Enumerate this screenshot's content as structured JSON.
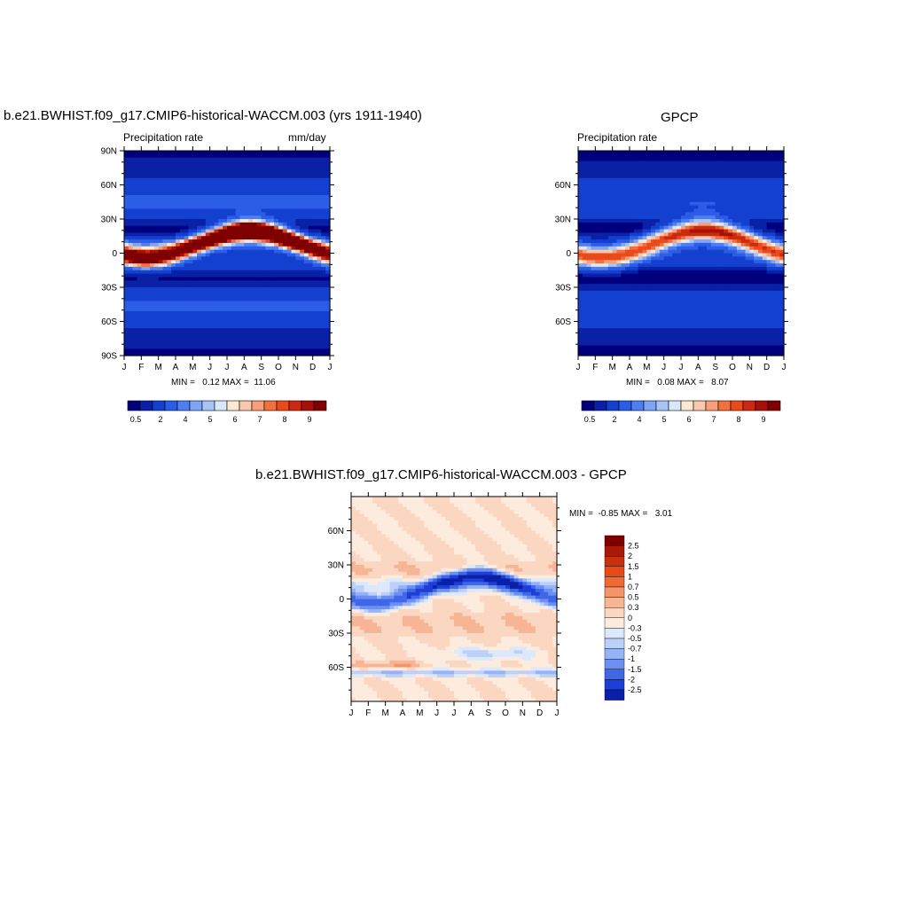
{
  "panels": [
    {
      "title": "b.e21.BWHIST.f09_g17.CMIP6-historical-WACCM.003 (yrs 1911-1940)",
      "left_label": "Precipitation rate",
      "right_label": "mm/day",
      "stats_text": "MIN =   0.12 MAX =  11.06"
    },
    {
      "title": "GPCP",
      "left_label": "Precipitation rate",
      "right_label": "",
      "stats_text": "MIN =   0.08 MAX =   8.07"
    },
    {
      "title": "b.e21.BWHIST.f09_g17.CMIP6-historical-WACCM.003 - GPCP",
      "left_label": "",
      "right_label": "",
      "stats_text": "MIN =  -0.85 MAX =   3.01"
    }
  ],
  "chart_data": [
    {
      "type": "heatmap",
      "title": "b.e21.BWHIST.f09_g17.CMIP6-historical-WACCM.003 (yrs 1911-1940)",
      "variable": "Precipitation rate",
      "units": "mm/day",
      "x_ticks": [
        "J",
        "F",
        "M",
        "A",
        "M",
        "J",
        "J",
        "A",
        "S",
        "O",
        "N",
        "D",
        "J"
      ],
      "y_ticks": [
        "90N",
        "60N",
        "30N",
        "0",
        "30S",
        "60S",
        "90S"
      ],
      "xlim_months": [
        0,
        12
      ],
      "ylim_lat": [
        -90,
        90
      ],
      "min": 0.12,
      "max": 11.06,
      "colorbar_levels": [
        "0.5",
        "2",
        "4",
        "5",
        "6",
        "7",
        "8",
        "9"
      ],
      "itcz_peak_month": 7.5,
      "itcz_peak_value": 11.06
    },
    {
      "type": "heatmap",
      "title": "GPCP",
      "variable": "Precipitation rate",
      "x_ticks": [
        "J",
        "F",
        "M",
        "A",
        "M",
        "J",
        "J",
        "A",
        "S",
        "O",
        "N",
        "D",
        "J"
      ],
      "y_ticks": [
        "60N",
        "30N",
        "0",
        "30S",
        "60S"
      ],
      "xlim_months": [
        0,
        12
      ],
      "ylim_lat": [
        -90,
        90
      ],
      "min": 0.08,
      "max": 8.07,
      "colorbar_levels": [
        "0.5",
        "2",
        "4",
        "5",
        "6",
        "7",
        "8",
        "9"
      ],
      "itcz_peak_month": 7.5,
      "itcz_peak_value": 8.07
    },
    {
      "type": "heatmap",
      "title": "b.e21.BWHIST.f09_g17.CMIP6-historical-WACCM.003 - GPCP",
      "x_ticks": [
        "J",
        "F",
        "M",
        "A",
        "M",
        "J",
        "J",
        "A",
        "S",
        "O",
        "N",
        "D",
        "J"
      ],
      "y_ticks": [
        "60N",
        "30N",
        "0",
        "30S",
        "60S"
      ],
      "xlim_months": [
        0,
        12
      ],
      "ylim_lat": [
        -90,
        90
      ],
      "min": -0.85,
      "max": 3.01,
      "colorbar_levels": [
        "2.5",
        "2",
        "1.5",
        "1",
        "0.7",
        "0.5",
        "0.3",
        "0",
        "-0.3",
        "-0.5",
        "-0.7",
        "-1",
        "-1.5",
        "-2",
        "-2.5"
      ]
    }
  ],
  "colors": {
    "abs_scale": [
      "#00007f",
      "#0a21a6",
      "#1440d0",
      "#2c5de6",
      "#4f7ef0",
      "#7fa3f5",
      "#a9c4fa",
      "#d8e8fc",
      "#fde8d6",
      "#f8c9ad",
      "#f5a07b",
      "#f2703f",
      "#e84a1c",
      "#cc2a10",
      "#a80f06",
      "#7f0000"
    ],
    "diff_scale": [
      "#7f0000",
      "#a81a08",
      "#c9300f",
      "#e44a1a",
      "#f06a33",
      "#f5946a",
      "#f8b596",
      "#fbd6c0",
      "#fdecde",
      "#dce8fb",
      "#bcd0f8",
      "#95b3f5",
      "#6d8ff0",
      "#3f67e8",
      "#1d3fd6",
      "#0a20a8",
      "#00007f"
    ]
  }
}
